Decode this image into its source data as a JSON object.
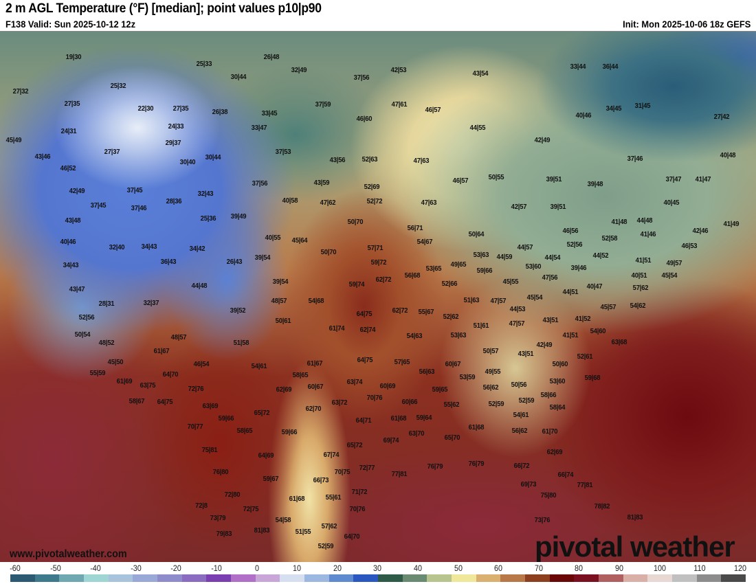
{
  "header": {
    "title": "2 m AGL Temperature (°F) [median]; point values p10|p90",
    "valid": "F138 Valid: Sun 2025-10-12 12z",
    "init": "Init: Mon 2025-10-06 18z GEFS"
  },
  "map": {
    "point_values": [
      "19|30",
      "25|33",
      "26|48",
      "32|49",
      "30|44",
      "37|56",
      "42|53",
      "43|54",
      "33|44",
      "36|44",
      "27|32",
      "25|32",
      "27|35",
      "22|30",
      "27|35",
      "26|38",
      "33|45",
      "37|59",
      "47|61",
      "46|57",
      "34|45",
      "31|45",
      "40|46",
      "27|42",
      "24|31",
      "24|33",
      "33|47",
      "46|60",
      "44|55",
      "45|49",
      "29|37",
      "42|49",
      "27|37",
      "37|53",
      "43|56",
      "52|63",
      "47|63",
      "43|46",
      "30|40",
      "30|44",
      "37|46",
      "40|48",
      "46|52",
      "50|55",
      "46|57",
      "39|51",
      "39|48",
      "37|47",
      "41|47",
      "42|49",
      "37|45",
      "37|56",
      "43|59",
      "52|69",
      "32|43",
      "40|58",
      "47|62",
      "52|72",
      "47|63",
      "42|57",
      "39|51",
      "40|45",
      "37|45",
      "37|46",
      "28|36",
      "39|49",
      "25|36",
      "43|48",
      "50|70",
      "56|71",
      "41|48",
      "44|48",
      "41|49",
      "46|56",
      "42|46",
      "40|46",
      "32|40",
      "34|43",
      "40|55",
      "45|64",
      "54|67",
      "50|64",
      "41|46",
      "52|58",
      "46|53",
      "34|42",
      "57|71",
      "52|56",
      "44|57",
      "44|52",
      "50|70",
      "53|63",
      "44|59",
      "44|54",
      "34|43",
      "36|43",
      "26|43",
      "39|54",
      "59|72",
      "53|65",
      "49|65",
      "53|60",
      "39|46",
      "41|51",
      "49|57",
      "56|68",
      "59|66",
      "47|56",
      "40|51",
      "45|54",
      "44|48",
      "39|54",
      "59|74",
      "62|72",
      "52|66",
      "45|55",
      "40|47",
      "57|62",
      "43|47",
      "44|51",
      "45|54",
      "28|31",
      "32|37",
      "48|57",
      "54|68",
      "51|63",
      "47|57",
      "54|62",
      "39|52",
      "64|75",
      "62|72",
      "55|67",
      "52|62",
      "44|53",
      "45|57",
      "52|56",
      "50|61",
      "43|51",
      "41|52",
      "47|57",
      "51|61",
      "61|74",
      "62|74",
      "50|54",
      "54|63",
      "53|63",
      "41|51",
      "54|60",
      "63|68",
      "48|57",
      "48|52",
      "51|58",
      "42|49",
      "50|57",
      "43|51",
      "61|67",
      "52|61",
      "45|50",
      "46|54",
      "54|61",
      "61|67",
      "64|75",
      "57|65",
      "60|67",
      "50|60",
      "55|59",
      "64|70",
      "58|65",
      "56|63",
      "53|59",
      "49|55",
      "61|69",
      "63|75",
      "63|74",
      "60|69",
      "50|56",
      "53|60",
      "59|68",
      "72|76",
      "62|69",
      "60|67",
      "59|65",
      "56|62",
      "58|66",
      "58|67",
      "64|75",
      "63|69",
      "70|76",
      "63|72",
      "60|66",
      "52|59",
      "52|59",
      "59|66",
      "65|72",
      "62|70",
      "55|62",
      "58|64",
      "64|71",
      "61|68",
      "59|64",
      "54|61",
      "70|77",
      "58|65",
      "59|66",
      "61|68",
      "56|62",
      "61|70",
      "63|70",
      "69|74",
      "65|70",
      "65|72",
      "75|81",
      "64|69",
      "67|74",
      "62|69",
      "76|80",
      "70|75",
      "72|77",
      "59|67",
      "66|73",
      "76|79",
      "76|79",
      "77|81",
      "66|72",
      "66|74",
      "69|73",
      "77|81",
      "72|80",
      "61|68",
      "55|61",
      "71|72",
      "75|80",
      "72|8",
      "72|75",
      "70|76",
      "78|82",
      "73|79",
      "54|58",
      "81|83",
      "57|62",
      "51|55",
      "81|83",
      "79|83",
      "73|76",
      "64|70",
      "52|59"
    ]
  },
  "watermark": {
    "url": "www.pivotalweather.com",
    "brand": "pivotal weather"
  },
  "colorbar": {
    "ticks": [
      "-60",
      "-50",
      "-40",
      "-30",
      "-20",
      "-10",
      "0",
      "10",
      "20",
      "30",
      "40",
      "50",
      "60",
      "70",
      "80",
      "90",
      "100",
      "110",
      "120"
    ],
    "colors": [
      "#2c5a72",
      "#3f7a8c",
      "#6fa8b0",
      "#9fd6d4",
      "#a7c4dc",
      "#9aa8d8",
      "#8f8ccc",
      "#8a6cc0",
      "#7a3fb0",
      "#b070c8",
      "#c9a6d8",
      "#d6dff0",
      "#9cb8e0",
      "#5f8ad0",
      "#2a58c0",
      "#2e5a48",
      "#6a8a72",
      "#b8c48e",
      "#efe79a",
      "#d9b070",
      "#b87848",
      "#8c4020",
      "#6a0808",
      "#7a1020",
      "#b06060",
      "#d9b0a8",
      "#e8d8d4",
      "#c0c0c0",
      "#8c8c8c",
      "#4a4a4a"
    ]
  }
}
